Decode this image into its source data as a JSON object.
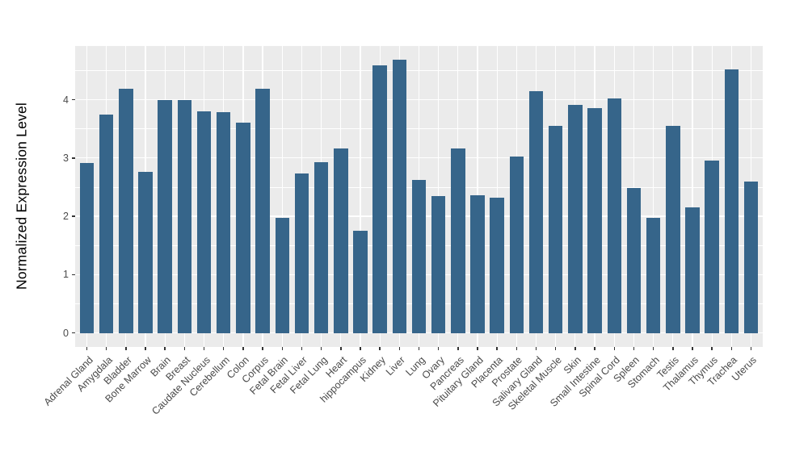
{
  "chart_data": {
    "type": "bar",
    "title": "",
    "xlabel": "",
    "ylabel": "Normalized Expression Level",
    "categories": [
      "Adrenal Gland",
      "Amygdala",
      "Bladder",
      "Bone Marrow",
      "Brain",
      "Breast",
      "Caudate Nucleus",
      "Cerebellum",
      "Colon",
      "Corpus",
      "Fetal Brain",
      "Fetal Liver",
      "Fetal Lung",
      "Heart",
      "hippocampus",
      "Kidney",
      "Liver",
      "Lung",
      "Ovary",
      "Pancreas",
      "Pituitary Gland",
      "Placenta",
      "Prostate",
      "Salivary Gland",
      "Skeletal Muscle",
      "Skin",
      "Small Intestine",
      "Spinal Cord",
      "Spleen",
      "Stomach",
      "Testis",
      "Thalamus",
      "Thymus",
      "Trachea",
      "Uterus"
    ],
    "values": [
      2.92,
      3.75,
      4.19,
      2.76,
      4.0,
      4.0,
      3.8,
      3.78,
      3.61,
      4.18,
      1.97,
      2.73,
      2.93,
      3.17,
      1.75,
      4.59,
      4.68,
      2.63,
      2.35,
      3.17,
      2.36,
      2.32,
      3.02,
      4.14,
      3.55,
      3.91,
      3.86,
      4.02,
      2.49,
      1.98,
      3.55,
      2.15,
      2.95,
      4.52,
      2.59
    ],
    "yticks": [
      0,
      1,
      2,
      3,
      4
    ],
    "yticks_minor": [
      0.5,
      1.5,
      2.5,
      3.5,
      4.5
    ],
    "ylim": [
      -0.24,
      4.92
    ],
    "grid": "on",
    "legend": "none",
    "colors": {
      "bar": "#36658A",
      "panel_background": "#EBEBEB",
      "gridline": "#FFFFFF",
      "tick_label": "#4a4a4a",
      "axis_title": "#000000"
    }
  }
}
